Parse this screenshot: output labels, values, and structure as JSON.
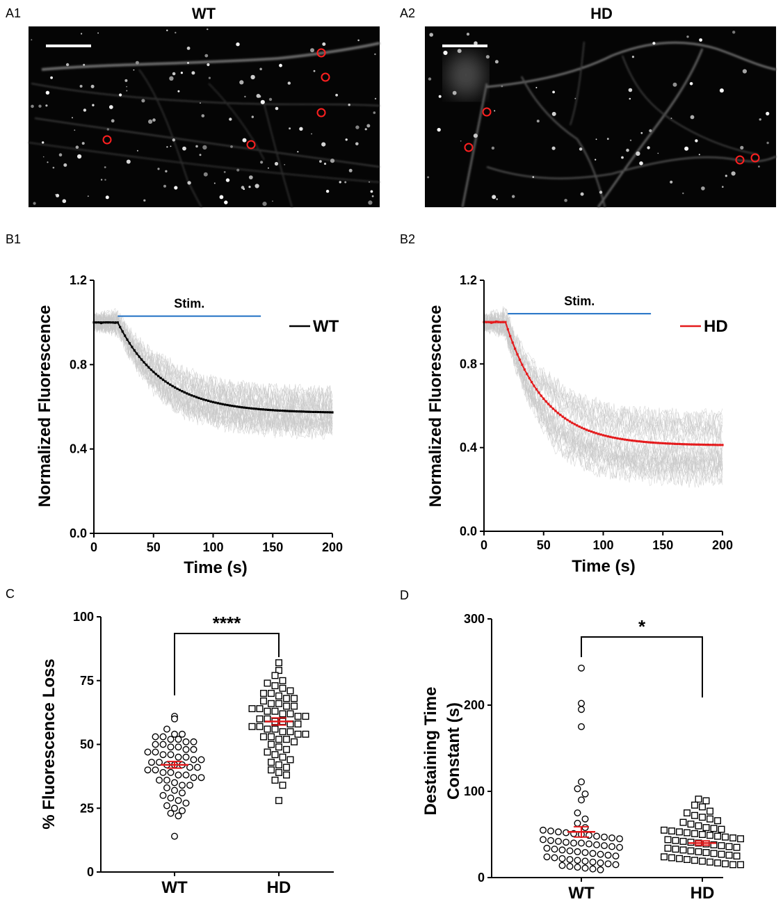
{
  "figure": {
    "panels": {
      "A1": {
        "label": "A1",
        "title": "WT"
      },
      "A2": {
        "label": "A2",
        "title": "HD"
      },
      "B1": {
        "label": "B1"
      },
      "B2": {
        "label": "B2"
      },
      "C": {
        "label": "C"
      },
      "D": {
        "label": "D"
      }
    }
  },
  "colors": {
    "wt_trace": "#000000",
    "hd_trace": "#e41a1c",
    "stim_bar": "#1f6fc4",
    "individual_traces": "#c8c8c8",
    "mean_sem": "#e41a1c",
    "roi_circle": "#ff2020"
  },
  "icons": {
    "scale_bar": "scale-bar-icon",
    "roi": "roi-circle-icon"
  },
  "chart_data": [
    {
      "id": "B1",
      "type": "line",
      "title": "",
      "xlabel": "Time (s)",
      "ylabel": "Normalized Fluorescence",
      "xlim": [
        0,
        200
      ],
      "ylim": [
        0,
        1.2
      ],
      "xticks": [
        "0",
        "50",
        "100",
        "150",
        "200"
      ],
      "yticks": [
        "0.0",
        "0.4",
        "0.8",
        "1.2"
      ],
      "stimulus": {
        "label": "Stim.",
        "start": 20,
        "end": 140,
        "level": 1.03
      },
      "legend": {
        "label": "WT",
        "position": "top-right"
      },
      "series": [
        {
          "name": "WT",
          "baseline": 1.0,
          "onset": 20,
          "plateau": 0.57,
          "tau": 38,
          "duration": 200,
          "sampling_interval": 2
        }
      ],
      "background_traces": {
        "count": 30,
        "spread": 0.1
      }
    },
    {
      "id": "B2",
      "type": "line",
      "title": "",
      "xlabel": "Time (s)",
      "ylabel": "Normalized Fluorescence",
      "xlim": [
        0,
        200
      ],
      "ylim": [
        0,
        1.2
      ],
      "xticks": [
        "0",
        "50",
        "100",
        "150",
        "200"
      ],
      "yticks": [
        "0.0",
        "0.4",
        "0.8",
        "1.2"
      ],
      "stimulus": {
        "label": "Stim.",
        "start": 20,
        "end": 140,
        "level": 1.04
      },
      "legend": {
        "label": "HD",
        "position": "top-right"
      },
      "series": [
        {
          "name": "HD",
          "baseline": 1.0,
          "onset": 18,
          "plateau": 0.41,
          "tau": 33,
          "duration": 200,
          "sampling_interval": 2
        }
      ],
      "background_traces": {
        "count": 30,
        "spread": 0.17
      }
    },
    {
      "id": "C",
      "type": "scatter",
      "title": "",
      "xlabel": "",
      "ylabel": "% Fluorescence Loss",
      "categories": [
        "WT",
        "HD"
      ],
      "ylim": [
        0,
        100
      ],
      "yticks": [
        "0",
        "25",
        "50",
        "75",
        "100"
      ],
      "significance": "****",
      "groups": [
        {
          "name": "WT",
          "marker": "circle",
          "mean": 42,
          "sem": 1.3,
          "values": [
            61,
            60,
            56,
            54,
            54,
            53,
            53,
            52,
            52,
            51,
            51,
            50,
            50,
            49,
            49,
            48,
            48,
            47,
            47,
            46,
            46,
            45,
            45,
            44,
            44,
            43,
            43,
            42,
            42,
            42,
            41,
            41,
            40,
            40,
            39,
            39,
            38,
            38,
            37,
            37,
            36,
            36,
            35,
            34,
            34,
            33,
            32,
            31,
            30,
            29,
            28,
            27,
            26,
            25,
            24,
            23,
            22,
            14
          ]
        },
        {
          "name": "HD",
          "marker": "square",
          "mean": 59,
          "sem": 1.4,
          "values": [
            82,
            79,
            77,
            75,
            74,
            73,
            72,
            71,
            70,
            70,
            69,
            68,
            68,
            67,
            66,
            66,
            65,
            65,
            64,
            64,
            63,
            63,
            62,
            62,
            61,
            61,
            60,
            60,
            59,
            59,
            58,
            58,
            57,
            57,
            56,
            56,
            55,
            55,
            54,
            54,
            53,
            53,
            52,
            52,
            51,
            50,
            49,
            48,
            47,
            46,
            45,
            44,
            43,
            42,
            41,
            40,
            39,
            38,
            36,
            34,
            28
          ]
        }
      ]
    },
    {
      "id": "D",
      "type": "scatter",
      "title": "",
      "xlabel": "",
      "ylabel": "Destaining Time Constant (s)",
      "ylabel_lines": [
        "Destaining Time",
        "Constant (s)"
      ],
      "categories": [
        "WT",
        "HD"
      ],
      "ylim": [
        0,
        300
      ],
      "yticks": [
        "0",
        "100",
        "200",
        "300"
      ],
      "significance": "*",
      "groups": [
        {
          "name": "WT",
          "marker": "circle",
          "mean": 53,
          "sem": 6,
          "values": [
            243,
            202,
            195,
            175,
            111,
            103,
            97,
            90,
            75,
            68,
            63,
            58,
            55,
            54,
            53,
            52,
            51,
            50,
            49,
            48,
            47,
            46,
            45,
            44,
            43,
            42,
            41,
            40,
            40,
            39,
            38,
            37,
            36,
            35,
            34,
            33,
            32,
            31,
            30,
            29,
            28,
            27,
            26,
            25,
            24,
            23,
            22,
            21,
            20,
            19,
            18,
            17,
            16,
            15,
            14,
            13,
            12,
            11,
            10,
            9
          ]
        },
        {
          "name": "HD",
          "marker": "square",
          "mean": 40,
          "sem": 2.5,
          "values": [
            91,
            89,
            84,
            82,
            77,
            75,
            72,
            70,
            68,
            66,
            64,
            62,
            60,
            58,
            57,
            56,
            55,
            54,
            53,
            52,
            51,
            50,
            49,
            48,
            47,
            46,
            45,
            44,
            43,
            42,
            41,
            40,
            39,
            38,
            37,
            36,
            35,
            34,
            33,
            32,
            31,
            30,
            29,
            28,
            27,
            26,
            25,
            24,
            23,
            22,
            21,
            20,
            19,
            18,
            17,
            16,
            15,
            15
          ]
        }
      ]
    }
  ]
}
